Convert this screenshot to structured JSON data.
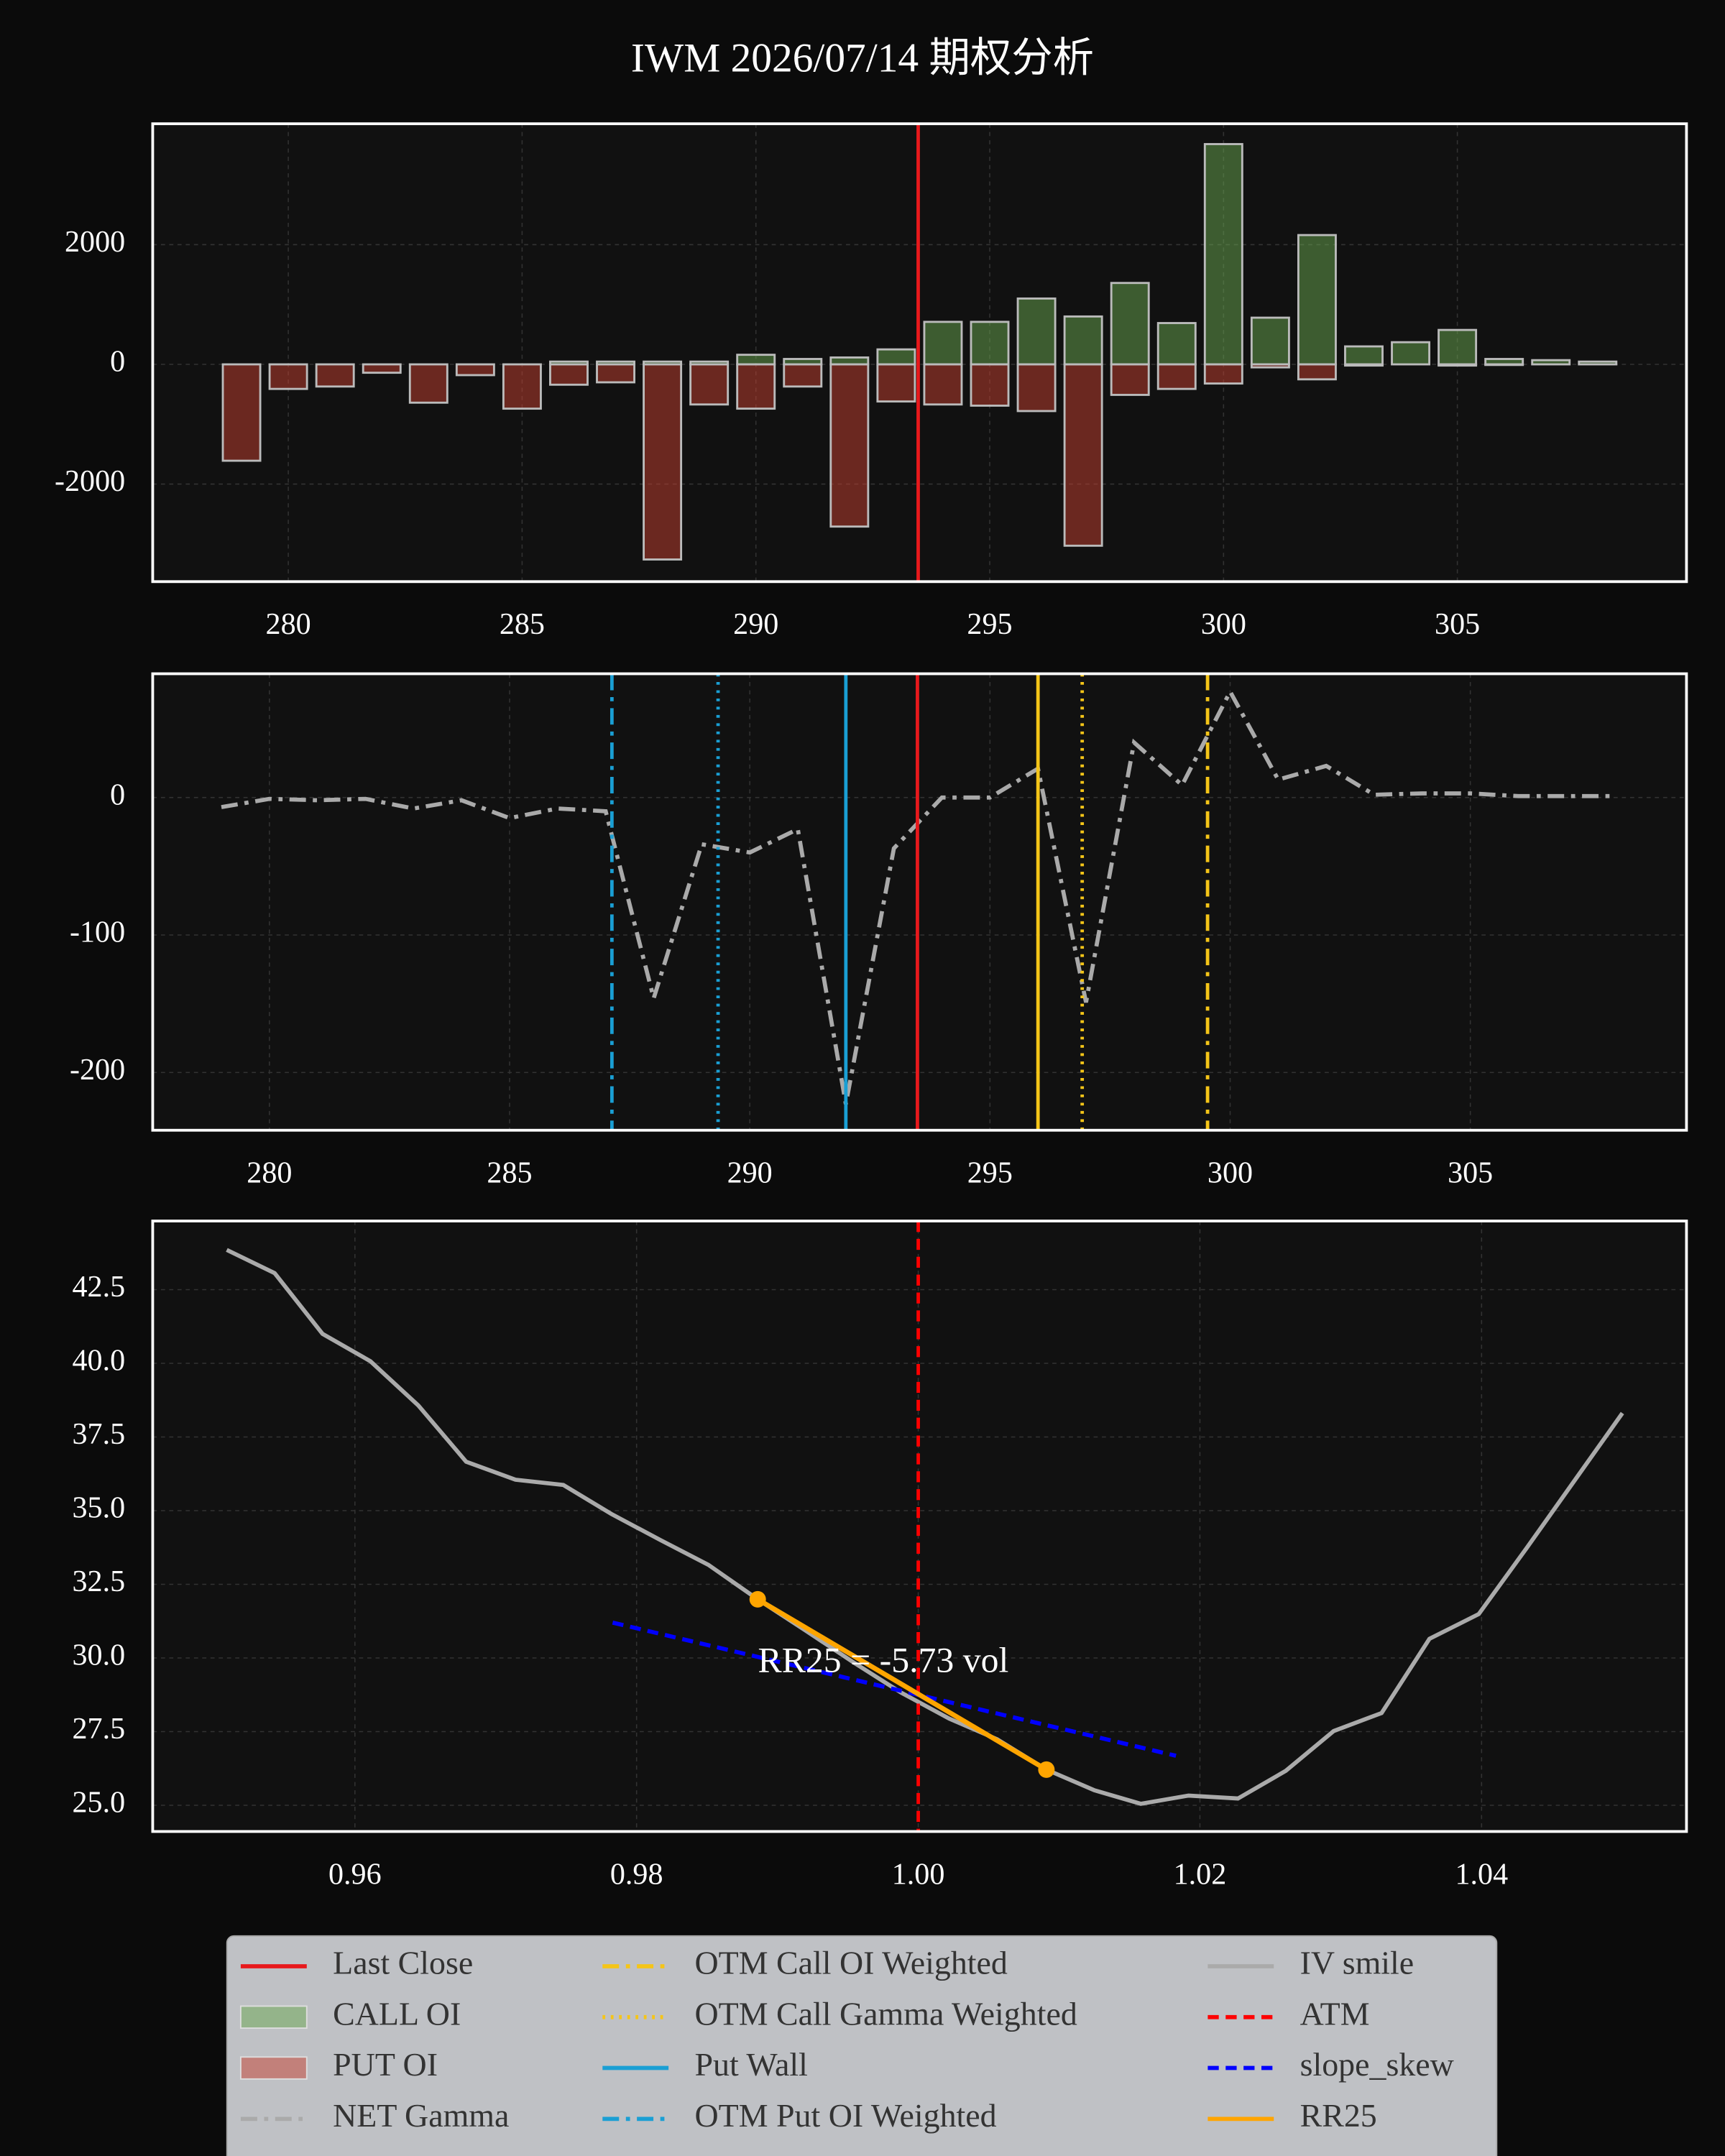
{
  "title": "IWM 2026/07/14 期权分析",
  "legend_position": "lower center",
  "chart_data": [
    {
      "type": "bar",
      "grid": true,
      "xlim": [
        277.1,
        309.9
      ],
      "ylim": [
        -3630,
        4020
      ],
      "xticks": [
        280,
        285,
        290,
        295,
        300,
        305
      ],
      "yticks": [
        -2000,
        0,
        2000
      ],
      "x": [
        279,
        280,
        281,
        282,
        283,
        284,
        285,
        286,
        287,
        288,
        289,
        290,
        291,
        292,
        293,
        294,
        295,
        296,
        297,
        298,
        299,
        300,
        301,
        302,
        303,
        304,
        305,
        306,
        307,
        308
      ],
      "series": [
        {
          "kind": "vline",
          "name": "Last Close",
          "color": "#e8191c",
          "style": "solid",
          "x": 293.47
        },
        {
          "kind": "bar",
          "name": "CALL OI",
          "color": "#6aa84f",
          "opacity": 0.5,
          "values": [
            0,
            0,
            0,
            0,
            0,
            0,
            0,
            46,
            46,
            46,
            46,
            160,
            90,
            115,
            250,
            710,
            710,
            1100,
            800,
            1360,
            690,
            3680,
            780,
            2160,
            300,
            370,
            575,
            90,
            70,
            46
          ]
        },
        {
          "kind": "bar",
          "name": "PUT OI",
          "color": "#c5402f",
          "opacity": 0.5,
          "values": [
            -1610,
            -410,
            -370,
            -140,
            -640,
            -180,
            -740,
            -340,
            -300,
            -3260,
            -670,
            -740,
            -370,
            -2710,
            -620,
            -670,
            -690,
            -780,
            -3030,
            -510,
            -410,
            -320,
            -50,
            -250,
            -20,
            0,
            -20,
            -10,
            0,
            0
          ]
        }
      ]
    },
    {
      "type": "line",
      "grid": true,
      "xlim": [
        277.57,
        309.5
      ],
      "ylim": [
        -242,
        90
      ],
      "xticks": [
        280,
        285,
        290,
        295,
        300,
        305
      ],
      "yticks": [
        -200,
        -100,
        0
      ],
      "series": [
        {
          "kind": "line",
          "name": "NET Gamma",
          "color": "#aaaaaa",
          "style": "dashdot",
          "x": [
            279,
            280,
            281,
            282,
            283,
            284,
            285,
            286,
            287,
            288,
            289,
            290,
            291,
            292,
            293,
            294,
            295,
            296,
            297,
            298,
            299,
            300,
            301,
            302,
            303,
            304,
            305,
            306,
            307,
            308
          ],
          "values": [
            -7,
            -1,
            -2,
            -1,
            -8,
            -2,
            -15,
            -8,
            -10,
            -146,
            -34,
            -40,
            -23,
            -223,
            -37,
            0,
            0,
            21,
            -149,
            40,
            9,
            77,
            13,
            23,
            2,
            3,
            3,
            1,
            1,
            1
          ]
        },
        {
          "kind": "vline",
          "name": "OTM Call OI Weighted",
          "color": "#f5c518",
          "style": "dashdot",
          "x": 299.53
        },
        {
          "kind": "vline",
          "name": "OTM Call Gamma Weighted",
          "color": "#f5c518",
          "style": "dotted",
          "x": 296.92
        },
        {
          "kind": "vline",
          "name": "Put Wall",
          "color": "#1a9fd4",
          "style": "solid",
          "x": 292.0
        },
        {
          "kind": "vline",
          "name": "OTM Put OI Weighted",
          "color": "#1a9fd4",
          "style": "dashdot",
          "x": 287.13
        },
        {
          "kind": "vline",
          "color": "#e8191c",
          "style": "solid",
          "x": 293.49
        },
        {
          "kind": "vline",
          "color": "#f5c518",
          "style": "solid",
          "x": 296.0
        },
        {
          "kind": "vline",
          "color": "#1a9fd4",
          "style": "dotted",
          "x": 289.34
        }
      ]
    },
    {
      "type": "line",
      "grid": true,
      "xlim": [
        0.94564,
        1.05455
      ],
      "ylim": [
        24.11,
        44.83
      ],
      "xticks": [
        0.96,
        0.98,
        {
          "value": 1,
          "label": "1.00"
        },
        1.02,
        1.04
      ],
      "yticks": [
        {
          "value": 25,
          "label": "25.0"
        },
        27.5,
        {
          "value": 30,
          "label": "30.0"
        },
        32.5,
        {
          "value": 35,
          "label": "35.0"
        },
        37.5,
        {
          "value": 40,
          "label": "40.0"
        },
        42.5
      ],
      "annotation": "RR25 = -5.73 vol",
      "series": [
        {
          "kind": "line",
          "name": "IV smile",
          "color": "#aaaaaa",
          "style": "solid",
          "x": [
            0.9509,
            0.9543,
            0.9577,
            0.9611,
            0.9645,
            0.9679,
            0.9714,
            0.9748,
            0.9782,
            0.9817,
            0.9851,
            0.9886,
            0.992,
            0.9954,
            0.9988,
            1.0022,
            1.0056,
            1.0091,
            1.0125,
            1.0158,
            1.0192,
            1.0227,
            1.0261,
            1.0295,
            1.0329,
            1.0363,
            1.0398,
            1.0432,
            1.0466,
            1.05
          ],
          "values": [
            43.85,
            43.06,
            41.0,
            40.07,
            38.57,
            36.66,
            36.05,
            35.87,
            34.89,
            34.0,
            33.16,
            31.99,
            30.93,
            29.85,
            28.82,
            27.94,
            27.24,
            26.21,
            25.51,
            25.05,
            25.33,
            25.23,
            26.17,
            27.52,
            28.13,
            30.65,
            31.49,
            33.73,
            36.02,
            38.31
          ]
        },
        {
          "kind": "vline",
          "name": "ATM",
          "color": "#ff0000",
          "style": "dash",
          "x": 1
        },
        {
          "kind": "line",
          "name": "slope_skew",
          "color": "#0000ff",
          "style": "dash",
          "x": [
            0.9783,
            1.0183
          ],
          "values": [
            31.2,
            26.68
          ]
        },
        {
          "kind": "line",
          "name": "RR25",
          "color": "#ffa500",
          "style": "solid",
          "markers": true,
          "x": [
            0.9886,
            1.0091
          ],
          "values": [
            31.99,
            26.21
          ]
        }
      ]
    }
  ]
}
